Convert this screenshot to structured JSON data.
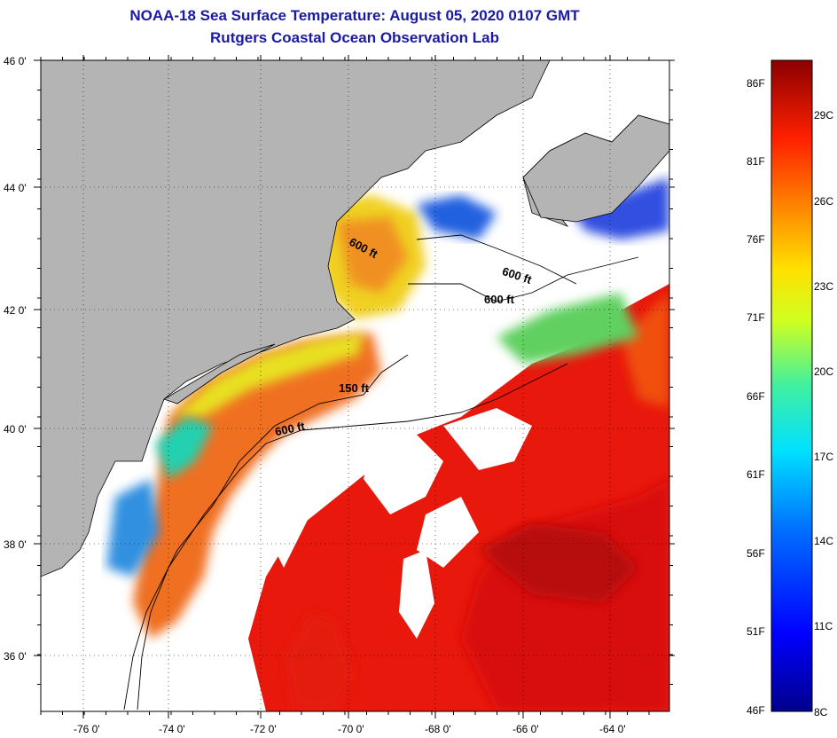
{
  "header": {
    "title": "NOAA-18 Sea Surface Temperature:  August 05, 2020 0107 GMT",
    "subtitle": "Rutgers Coastal Ocean Observation Lab"
  },
  "axes": {
    "lat_labels": [
      "46 0'",
      "44 0'",
      "42 0'",
      "40 0'",
      "38 0'",
      "36 0'"
    ],
    "lon_labels": [
      "-76 0'",
      "-74 0'",
      "-72 0'",
      "-70 0'",
      "-68 0'",
      "-66 0'",
      "-64 0'"
    ]
  },
  "depth_contours": [
    "600 ft",
    "600 ft",
    "600 ft",
    "150 ft",
    "600 ft"
  ],
  "colorbar": {
    "fahrenheit": [
      "86F",
      "81F",
      "76F",
      "71F",
      "66F",
      "61F",
      "56F",
      "51F",
      "46F"
    ],
    "celsius": [
      "29C",
      "26C",
      "23C",
      "20C",
      "17C",
      "14C",
      "11C",
      "8C"
    ]
  },
  "colors": {
    "land": "#b4b4b4",
    "cloud": "#ffffff",
    "title": "#1a1aa6",
    "warm": "#e8180c",
    "hot": "#b80a08"
  }
}
